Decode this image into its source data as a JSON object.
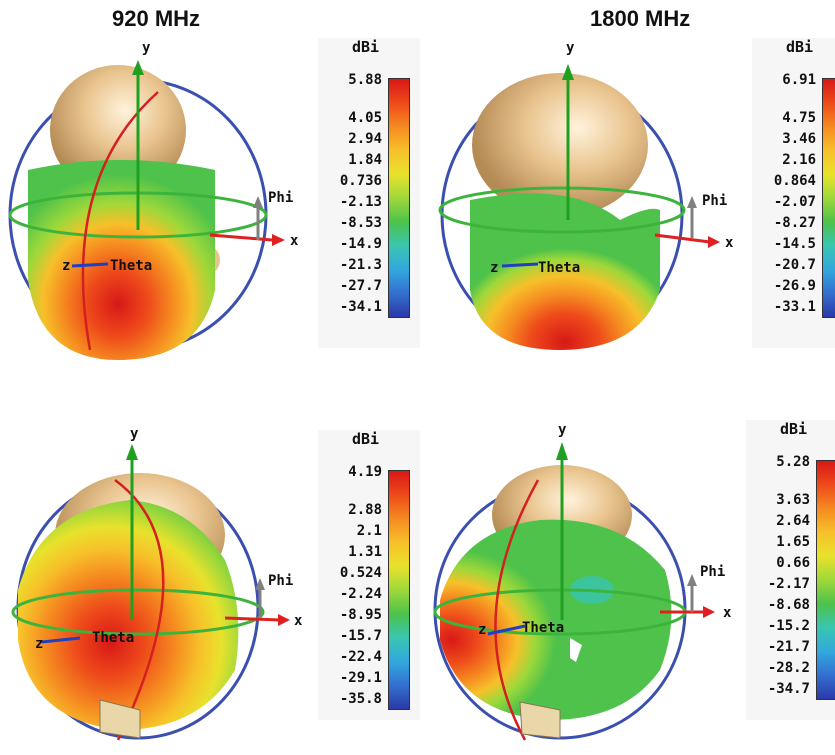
{
  "headers": [
    "920 MHz",
    "1800 MHz"
  ],
  "axes": {
    "x": "x",
    "y": "y",
    "z": "z",
    "theta": "Theta",
    "phi": "Phi"
  },
  "legends": [
    {
      "unit": "dBi",
      "ticks": [
        "5.88",
        "4.05",
        "2.94",
        "1.84",
        "0.736",
        "-2.13",
        "-8.53",
        "-14.9",
        "-21.3",
        "-27.7",
        "-34.1"
      ]
    },
    {
      "unit": "dBi",
      "ticks": [
        "6.91",
        "4.75",
        "3.46",
        "2.16",
        "0.864",
        "-2.07",
        "-8.27",
        "-14.5",
        "-20.7",
        "-26.9",
        "-33.1"
      ]
    },
    {
      "unit": "dBi",
      "ticks": [
        "4.19",
        "2.88",
        "2.1",
        "1.31",
        "0.524",
        "-2.24",
        "-8.95",
        "-15.7",
        "-22.4",
        "-29.1",
        "-35.8"
      ]
    },
    {
      "unit": "dBi",
      "ticks": [
        "5.28",
        "3.63",
        "2.64",
        "1.65",
        "0.66",
        "-2.17",
        "-8.68",
        "-15.2",
        "-21.7",
        "-28.2",
        "-34.7"
      ]
    }
  ],
  "colors": {
    "scale": [
      "#d81818",
      "#ee4a1a",
      "#f58a20",
      "#f7c02a",
      "#e8e22c",
      "#9ed83a",
      "#4ec24a",
      "#38c6b0",
      "#33a8dd",
      "#3370d0",
      "#2a3aa8"
    ],
    "head": "#e9c48e",
    "x_axis": "#e02020",
    "y_axis": "#20a020",
    "z_axis": "#2040c0",
    "ring_blue": "#3a4fb0",
    "ring_green": "#3cb43c",
    "ring_red": "#d42020"
  }
}
